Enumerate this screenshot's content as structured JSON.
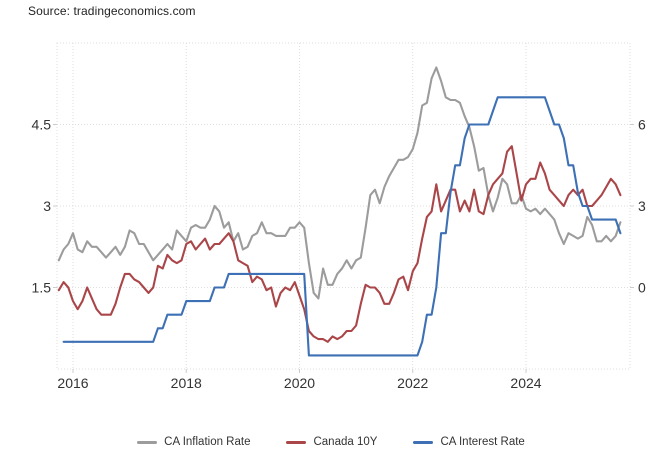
{
  "source": {
    "label": "Source: tradingeconomics.com"
  },
  "chart_data": {
    "type": "line",
    "title": "",
    "xlabel": "",
    "ylabel": "",
    "grid": "dotted",
    "legend_position": "bottom",
    "frequency": "monthly",
    "start_month": "2015-10",
    "end_month": "2025-09",
    "x_ticks": [
      {
        "label": "2016",
        "month_index": 3
      },
      {
        "label": "2018",
        "month_index": 27
      },
      {
        "label": "2020",
        "month_index": 51
      },
      {
        "label": "2022",
        "month_index": 75
      },
      {
        "label": "2024",
        "month_index": 99
      }
    ],
    "left_axis": {
      "range": [
        0,
        6
      ],
      "ticks": [
        {
          "label": "1.5",
          "value": 1.5
        },
        {
          "label": "3",
          "value": 3
        },
        {
          "label": "4.5",
          "value": 4.5
        }
      ]
    },
    "right_axis": {
      "range": [
        -3,
        9
      ],
      "ticks": [
        {
          "label": "0",
          "value": 0
        },
        {
          "label": "3",
          "value": 3
        },
        {
          "label": "6",
          "value": 6
        }
      ]
    },
    "series": [
      {
        "name": "CA Inflation Rate",
        "color": "#9c9c9c",
        "axis": "right",
        "values": [
          1.0,
          1.4,
          1.6,
          2.0,
          1.4,
          1.3,
          1.7,
          1.5,
          1.5,
          1.3,
          1.1,
          1.3,
          1.5,
          1.2,
          1.5,
          2.1,
          2.0,
          1.6,
          1.6,
          1.3,
          1.0,
          1.2,
          1.4,
          1.6,
          1.4,
          2.1,
          1.9,
          1.7,
          2.2,
          2.3,
          2.2,
          2.2,
          2.5,
          3.0,
          2.8,
          2.2,
          2.4,
          1.7,
          2.0,
          1.4,
          1.5,
          1.9,
          2.0,
          2.4,
          2.0,
          2.0,
          1.9,
          1.9,
          1.9,
          2.2,
          2.2,
          2.4,
          2.2,
          0.9,
          -0.2,
          -0.4,
          0.7,
          0.1,
          0.1,
          0.5,
          0.7,
          1.0,
          0.7,
          1.0,
          1.1,
          2.2,
          3.4,
          3.6,
          3.1,
          3.7,
          4.1,
          4.4,
          4.7,
          4.7,
          4.8,
          5.1,
          5.7,
          6.7,
          6.8,
          7.7,
          8.1,
          7.6,
          7.0,
          6.9,
          6.9,
          6.8,
          6.3,
          5.9,
          5.2,
          4.3,
          4.4,
          3.4,
          2.8,
          3.3,
          4.0,
          3.8,
          3.1,
          3.1,
          3.4,
          2.9,
          2.8,
          2.9,
          2.7,
          2.9,
          2.7,
          2.5,
          2.0,
          1.6,
          2.0,
          1.9,
          1.8,
          1.9,
          2.6,
          2.3,
          1.7,
          1.7,
          1.9,
          1.7,
          1.9,
          2.4
        ]
      },
      {
        "name": "Canada 10Y",
        "color": "#aa4649",
        "axis": "left",
        "values": [
          1.45,
          1.6,
          1.5,
          1.25,
          1.1,
          1.25,
          1.5,
          1.3,
          1.1,
          1.0,
          1.0,
          1.0,
          1.2,
          1.5,
          1.75,
          1.75,
          1.65,
          1.6,
          1.5,
          1.4,
          1.5,
          1.9,
          1.85,
          2.1,
          2.0,
          1.95,
          2.0,
          2.3,
          2.35,
          2.2,
          2.3,
          2.4,
          2.2,
          2.3,
          2.3,
          2.4,
          2.5,
          2.35,
          2.0,
          1.95,
          1.9,
          1.6,
          1.7,
          1.65,
          1.45,
          1.5,
          1.15,
          1.4,
          1.5,
          1.45,
          1.6,
          1.35,
          1.1,
          0.7,
          0.6,
          0.55,
          0.55,
          0.5,
          0.6,
          0.55,
          0.6,
          0.7,
          0.7,
          0.8,
          1.2,
          1.55,
          1.5,
          1.5,
          1.4,
          1.2,
          1.2,
          1.4,
          1.65,
          1.7,
          1.45,
          1.8,
          1.95,
          2.4,
          2.8,
          2.9,
          3.4,
          2.9,
          3.1,
          3.3,
          3.3,
          2.9,
          3.1,
          2.9,
          3.3,
          2.9,
          2.85,
          3.2,
          3.4,
          3.5,
          3.6,
          4.0,
          4.1,
          3.6,
          3.1,
          3.4,
          3.5,
          3.5,
          3.8,
          3.6,
          3.3,
          3.2,
          3.1,
          3.0,
          3.2,
          3.3,
          3.2,
          3.3,
          3.0,
          3.0,
          3.1,
          3.2,
          3.35,
          3.5,
          3.4,
          3.2
        ]
      },
      {
        "name": "CA Interest Rate",
        "color": "#3d70b5",
        "axis": "left",
        "values": [
          null,
          0.5,
          0.5,
          0.5,
          0.5,
          0.5,
          0.5,
          0.5,
          0.5,
          0.5,
          0.5,
          0.5,
          0.5,
          0.5,
          0.5,
          0.5,
          0.5,
          0.5,
          0.5,
          0.5,
          0.5,
          0.75,
          0.75,
          1.0,
          1.0,
          1.0,
          1.0,
          1.25,
          1.25,
          1.25,
          1.25,
          1.25,
          1.25,
          1.5,
          1.5,
          1.5,
          1.75,
          1.75,
          1.75,
          1.75,
          1.75,
          1.75,
          1.75,
          1.75,
          1.75,
          1.75,
          1.75,
          1.75,
          1.75,
          1.75,
          1.75,
          1.75,
          1.75,
          0.25,
          0.25,
          0.25,
          0.25,
          0.25,
          0.25,
          0.25,
          0.25,
          0.25,
          0.25,
          0.25,
          0.25,
          0.25,
          0.25,
          0.25,
          0.25,
          0.25,
          0.25,
          0.25,
          0.25,
          0.25,
          0.25,
          0.25,
          0.25,
          0.5,
          1.0,
          1.0,
          1.5,
          2.5,
          2.5,
          3.25,
          3.75,
          3.75,
          4.25,
          4.5,
          4.5,
          4.5,
          4.5,
          4.5,
          4.75,
          5.0,
          5.0,
          5.0,
          5.0,
          5.0,
          5.0,
          5.0,
          5.0,
          5.0,
          5.0,
          5.0,
          4.75,
          4.5,
          4.5,
          4.25,
          3.75,
          3.75,
          3.25,
          3.0,
          3.0,
          2.75,
          2.75,
          2.75,
          2.75,
          2.75,
          2.75,
          2.5
        ]
      }
    ]
  }
}
